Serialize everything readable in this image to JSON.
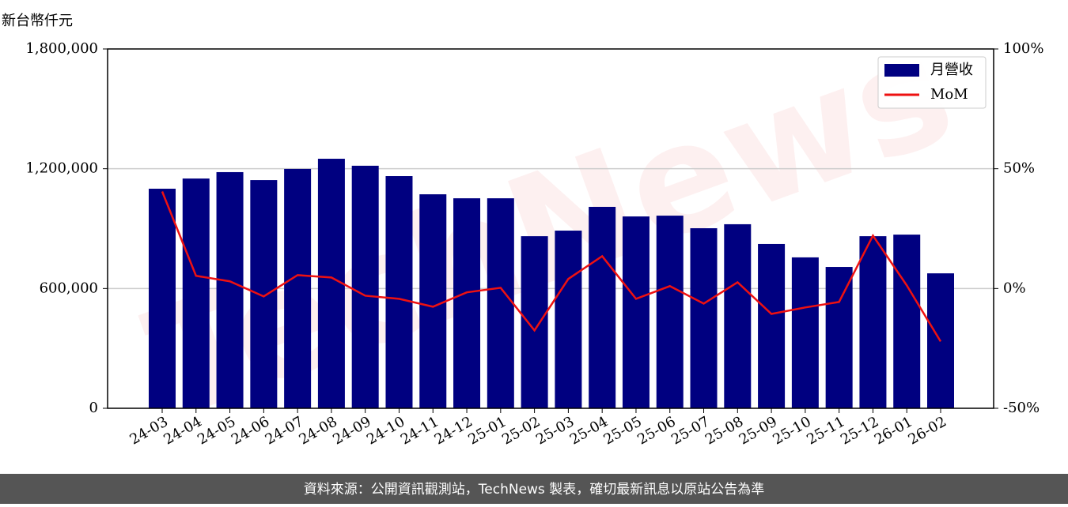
{
  "chart_data": {
    "type": "bar",
    "y_label": "新台幣仟元",
    "watermark": "TechNews",
    "footer": "資料來源：公開資訊觀測站，TechNews 製表，確切最新訊息以原站公告為準",
    "categories": [
      "24-03",
      "24-04",
      "24-05",
      "24-06",
      "24-07",
      "24-08",
      "24-09",
      "24-10",
      "24-11",
      "24-12",
      "25-01",
      "25-02",
      "25-03",
      "25-04",
      "25-05",
      "25-06",
      "25-07",
      "25-08",
      "25-09",
      "25-10",
      "25-11",
      "25-12",
      "26-01",
      "26-02"
    ],
    "series": [
      {
        "name": "月營收",
        "type": "bar",
        "color": "#000080",
        "values": [
          1100000,
          1151000,
          1183000,
          1143000,
          1199000,
          1250000,
          1215000,
          1163000,
          1072000,
          1052000,
          1052000,
          862000,
          890000,
          1009000,
          961000,
          965000,
          902000,
          922000,
          823000,
          756000,
          708000,
          862000,
          870000,
          676000
        ]
      },
      {
        "name": "MoM",
        "type": "line",
        "axis": "y2",
        "color": "#ee1111",
        "values": [
          40.5,
          5.3,
          3.0,
          -3.3,
          5.6,
          4.6,
          -3.0,
          -4.3,
          -7.6,
          -1.6,
          0.3,
          -17.5,
          4.0,
          13.5,
          -4.3,
          1.0,
          -6.3,
          2.6,
          -10.6,
          -7.9,
          -5.6,
          22.1,
          1.3,
          -22.1
        ]
      }
    ],
    "ylim": [
      0,
      1800000
    ],
    "yticks": [
      0,
      {
        "value": 600000,
        "label": "600,000"
      },
      {
        "value": 1200000,
        "label": "1,200,000"
      },
      {
        "value": 1800000,
        "label": "1,800,000"
      }
    ],
    "y2lim": [
      -50,
      100
    ],
    "y2ticks": [
      {
        "value": -50,
        "label": "-50%"
      },
      {
        "value": 0,
        "label": "0%"
      },
      {
        "value": 50,
        "label": "50%"
      },
      {
        "value": 100,
        "label": "100%"
      }
    ],
    "grid": true,
    "legend": "upper right"
  }
}
